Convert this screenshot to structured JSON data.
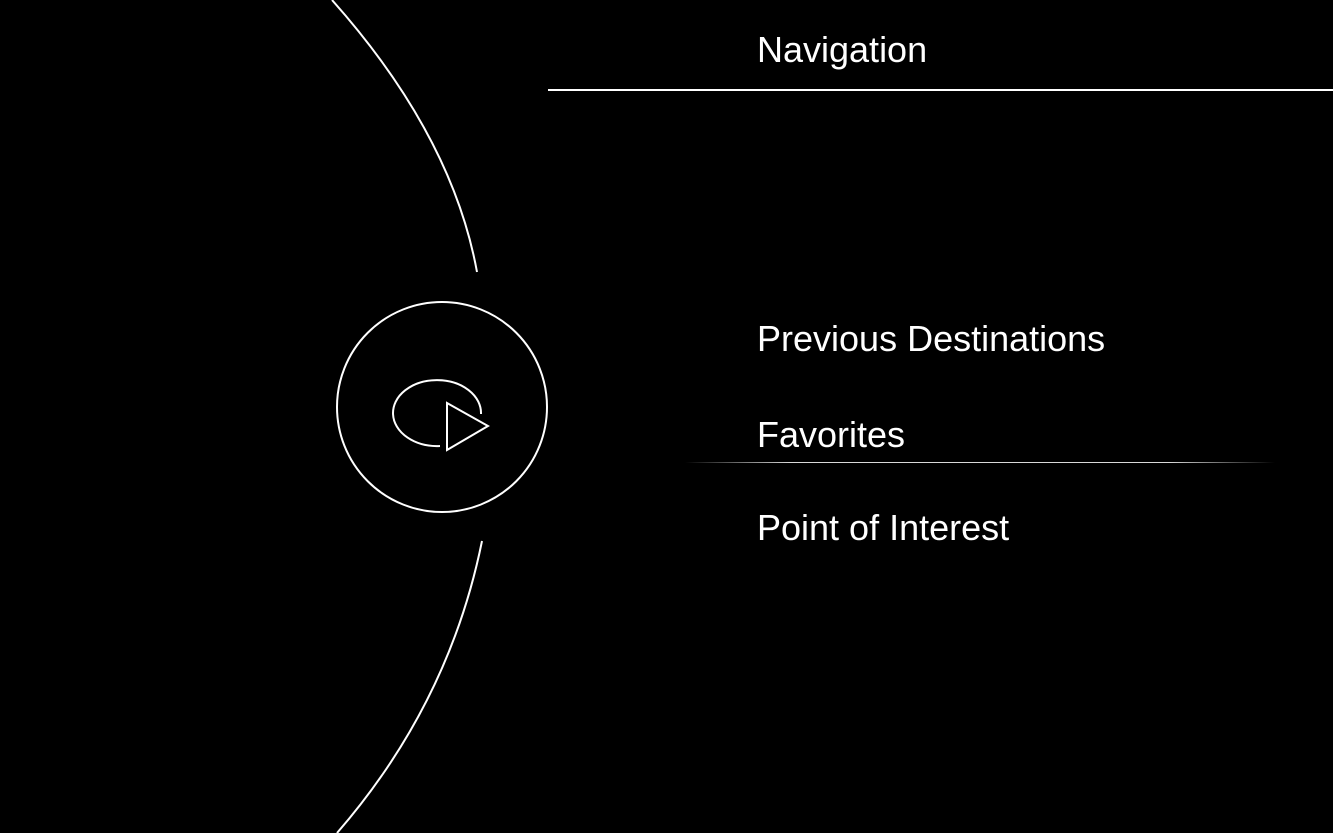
{
  "header": {
    "title": "Navigation"
  },
  "nav_icon": {
    "icon_name": "navigation-arrow-icon"
  },
  "menu": {
    "items": [
      {
        "label": "Previous Destinations"
      },
      {
        "label": "Favorites"
      },
      {
        "label": "Point of Interest"
      }
    ],
    "selected_label": "Favorites"
  },
  "colors": {
    "background": "#000000",
    "foreground": "#ffffff"
  }
}
